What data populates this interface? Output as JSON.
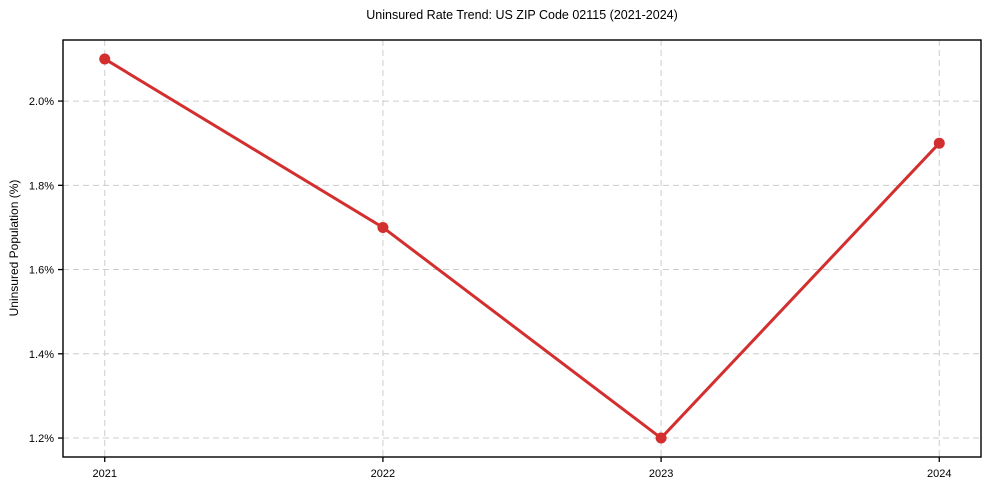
{
  "figure": {
    "background": "#ffffff"
  },
  "chart_data": {
    "type": "line",
    "title": "Uninsured Rate Trend: US ZIP Code 02115 (2021-2024)",
    "xlabel": "",
    "ylabel": "Uninsured Population (%)",
    "x": [
      2021,
      2022,
      2023,
      2024
    ],
    "x_tick_labels": [
      "2021",
      "2022",
      "2023",
      "2024"
    ],
    "series": [
      {
        "name": "Uninsured Population (%)",
        "values": [
          2.1,
          1.7,
          1.2,
          1.9
        ],
        "color": "#d32f2f"
      }
    ],
    "y_ticks": [
      1.2,
      1.4,
      1.6,
      1.8,
      2.0
    ],
    "y_tick_labels": [
      "1.2%",
      "1.4%",
      "1.6%",
      "1.8%",
      "2.0%"
    ],
    "xlim": [
      2020.85,
      2024.15
    ],
    "ylim": [
      1.155,
      2.145
    ],
    "grid": true,
    "grid_style": "dashed",
    "grid_color": "#cccccc",
    "spine_color": "#000000",
    "tick_color": "#000000",
    "marker": "circle",
    "marker_radius": 5.5,
    "line_width": 3,
    "legend_position": "none"
  }
}
